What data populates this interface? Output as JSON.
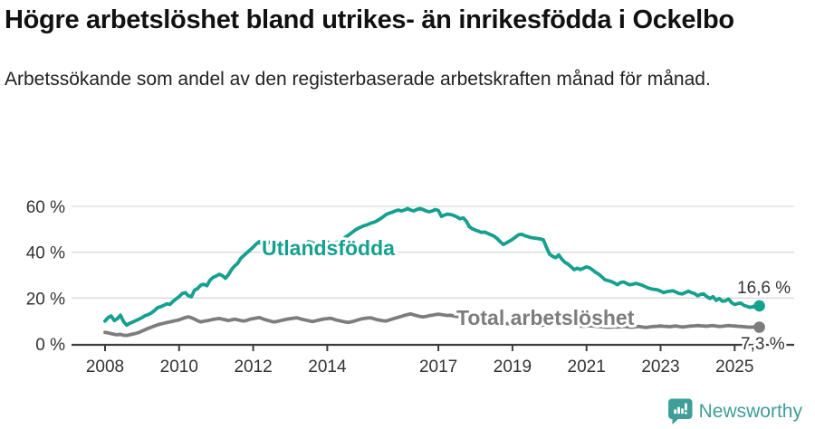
{
  "footer": {
    "brand": "Newsworthy"
  },
  "colors": {
    "accent_teal": "#16a08f",
    "line_gray": "#7d7d7d",
    "logo_teal": "#3f9e97",
    "axis": "#3d3d3d",
    "tick_text": "#333333",
    "grid": "#d9d9d9"
  },
  "chart_data": {
    "type": "line",
    "title": "Högre arbetslöshet bland utrikes- än inrikesfödda i Ockelbo",
    "subtitle": "Arbetssökande som andel av den registerbaserade arbetskraften månad för månad.",
    "frequency": "monthly",
    "x_start_year": 2008,
    "x_end_label": "2025",
    "x_ticks": [
      2008,
      2010,
      2012,
      2014,
      2017,
      2019,
      2021,
      2023,
      2025
    ],
    "y_ticks": [
      0,
      20,
      40,
      60
    ],
    "y_suffix": " %",
    "ylim": [
      0,
      62
    ],
    "grid": "horizontal",
    "legend_position": "inline-labels",
    "series": [
      {
        "name": "Utlandsfödda",
        "color": "#16a08f",
        "end_label": "16,6 %",
        "end_value": 16.6,
        "values": [
          10.0,
          11.5,
          12.2,
          10.2,
          11.0,
          12.5,
          9.8,
          8.2,
          9.0,
          9.6,
          10.2,
          10.8,
          11.5,
          12.3,
          12.8,
          13.5,
          14.5,
          15.8,
          16.2,
          16.8,
          17.5,
          17.2,
          18.5,
          19.6,
          20.6,
          22.0,
          22.4,
          21.0,
          20.6,
          23.4,
          24.2,
          25.6,
          26.0,
          25.4,
          27.8,
          29.0,
          29.6,
          30.4,
          29.8,
          28.6,
          30.2,
          32.4,
          34.0,
          35.2,
          37.4,
          38.6,
          39.8,
          41.0,
          42.2,
          43.6,
          44.6,
          43.0,
          42.4,
          44.4,
          44.0,
          43.4,
          43.0,
          42.6,
          43.0,
          43.6,
          43.2,
          42.6,
          43.6,
          43.0,
          42.6,
          44.0,
          44.6,
          44.2,
          43.6,
          43.2,
          43.6,
          44.0,
          44.4,
          44.0,
          43.6,
          44.2,
          44.8,
          45.6,
          46.6,
          47.6,
          48.6,
          49.6,
          50.4,
          51.0,
          51.6,
          52.0,
          52.6,
          53.0,
          53.6,
          54.4,
          55.4,
          56.4,
          57.0,
          57.4,
          58.0,
          58.4,
          58.0,
          58.4,
          59.0,
          58.4,
          58.0,
          58.6,
          59.0,
          58.6,
          58.0,
          57.6,
          58.0,
          58.6,
          58.2,
          55.6,
          56.2,
          56.6,
          56.4,
          56.0,
          55.4,
          54.6,
          55.0,
          53.6,
          51.2,
          50.2,
          49.6,
          49.2,
          48.6,
          48.8,
          48.2,
          47.6,
          47.0,
          46.0,
          44.6,
          43.4,
          44.0,
          44.8,
          45.6,
          46.6,
          47.6,
          47.8,
          47.2,
          46.8,
          46.4,
          46.2,
          46.0,
          45.8,
          45.4,
          42.2,
          39.2,
          38.2,
          37.6,
          38.8,
          37.0,
          35.6,
          34.8,
          33.6,
          32.4,
          33.0,
          32.4,
          33.0,
          33.6,
          33.2,
          32.2,
          31.2,
          30.4,
          29.2,
          28.0,
          27.6,
          27.2,
          26.6,
          25.8,
          26.8,
          27.0,
          26.4,
          25.8,
          26.0,
          26.4,
          26.0,
          25.6,
          25.0,
          24.4,
          24.0,
          23.8,
          23.6,
          23.0,
          22.4,
          22.8,
          23.0,
          23.2,
          22.6,
          22.0,
          21.8,
          22.4,
          23.0,
          22.4,
          22.0,
          21.0,
          21.6,
          21.8,
          20.6,
          19.8,
          20.6,
          19.0,
          19.8,
          18.6,
          18.8,
          19.6,
          18.0,
          17.2,
          17.6,
          17.8,
          16.8,
          16.4,
          15.9,
          16.4,
          15.8,
          16.6
        ]
      },
      {
        "name": "Total arbetslöshet",
        "color": "#7d7d7d",
        "end_label": "7,3 %",
        "end_value": 7.3,
        "values": [
          5.0,
          4.8,
          4.5,
          4.2,
          4.0,
          4.2,
          3.8,
          3.7,
          4.0,
          4.3,
          4.6,
          5.0,
          5.6,
          6.2,
          6.8,
          7.3,
          7.8,
          8.3,
          8.7,
          9.0,
          9.3,
          9.6,
          9.9,
          10.2,
          10.5,
          11.0,
          11.5,
          11.8,
          11.4,
          10.8,
          10.1,
          9.6,
          9.9,
          10.1,
          10.4,
          10.7,
          10.9,
          11.1,
          10.8,
          10.5,
          10.2,
          10.5,
          10.8,
          10.5,
          10.2,
          10.0,
          10.3,
          10.8,
          11.0,
          11.3,
          11.5,
          11.0,
          10.5,
          10.2,
          9.8,
          9.6,
          9.9,
          10.2,
          10.5,
          10.8,
          11.0,
          11.2,
          11.4,
          11.1,
          10.7,
          10.4,
          10.1,
          9.8,
          10.0,
          10.3,
          10.6,
          10.9,
          11.0,
          11.2,
          10.8,
          10.4,
          10.1,
          9.8,
          9.5,
          9.4,
          9.7,
          10.1,
          10.5,
          10.9,
          11.1,
          11.3,
          11.4,
          11.0,
          10.6,
          10.4,
          10.1,
          10.0,
          10.4,
          10.8,
          11.2,
          11.6,
          12.0,
          12.4,
          12.8,
          13.1,
          12.7,
          12.3,
          12.0,
          11.8,
          12.0,
          12.3,
          12.5,
          12.8,
          13.0,
          12.8,
          12.6,
          12.4,
          12.5,
          12.2,
          12.0,
          11.8,
          11.6,
          11.4,
          11.2,
          11.0,
          10.8,
          10.6,
          10.4,
          10.2,
          10.0,
          9.8,
          9.6,
          9.4,
          9.2,
          9.0,
          8.9,
          8.8,
          8.7,
          8.6,
          8.5,
          8.4,
          8.3,
          8.2,
          8.1,
          8.0,
          8.0,
          8.1,
          8.2,
          8.3,
          8.5,
          8.7,
          8.8,
          9.0,
          8.8,
          8.6,
          8.4,
          8.2,
          8.0,
          7.9,
          7.8,
          7.7,
          7.8,
          7.9,
          7.8,
          7.7,
          7.6,
          7.5,
          7.4,
          7.3,
          7.4,
          7.5,
          7.4,
          7.5,
          7.6,
          7.5,
          7.4,
          7.3,
          7.5,
          7.6,
          7.4,
          7.2,
          7.3,
          7.5,
          7.6,
          7.7,
          7.8,
          7.7,
          7.6,
          7.5,
          7.7,
          7.8,
          7.6,
          7.4,
          7.5,
          7.7,
          7.8,
          7.9,
          8.0,
          7.9,
          7.8,
          7.7,
          7.9,
          8.0,
          7.8,
          7.6,
          7.7,
          7.9,
          8.0,
          7.9,
          7.8,
          7.7,
          7.6,
          7.5,
          7.4,
          7.3,
          7.4,
          7.2,
          7.3
        ]
      }
    ]
  }
}
